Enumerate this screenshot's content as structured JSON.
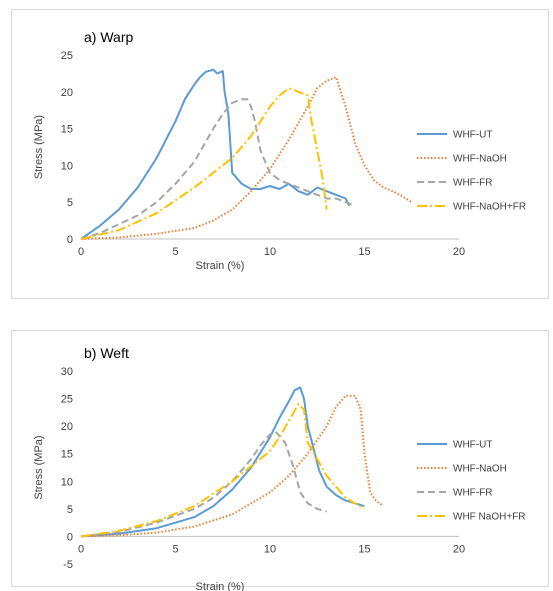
{
  "chart_data": [
    {
      "type": "line",
      "title": "a) Warp",
      "xlabel": "Strain (%)",
      "ylabel": "Stress (MPa)",
      "xlim": [
        0,
        20
      ],
      "ylim": [
        0,
        25
      ],
      "xticks": [
        0,
        5,
        10,
        15,
        20
      ],
      "yticks": [
        0,
        5,
        10,
        15,
        20,
        25
      ],
      "grid": false,
      "legend_position": "right",
      "series": [
        {
          "name": "WHF-UT",
          "color": "#5b9bd5",
          "style": "solid",
          "x": [
            0,
            1,
            2,
            3,
            4,
            5,
            5.5,
            6,
            6.3,
            6.6,
            7,
            7.2,
            7.5,
            7.6,
            7.8,
            7.9,
            8,
            8.5,
            9,
            9.5,
            10,
            10.5,
            11,
            11.5,
            12,
            12.5,
            13,
            13.5,
            14,
            14.2
          ],
          "y": [
            0,
            1.8,
            4,
            7,
            11,
            16,
            19,
            21,
            22,
            22.7,
            23,
            22.5,
            22.8,
            20,
            17,
            13,
            9,
            7.5,
            6.8,
            6.8,
            7.2,
            6.8,
            7.5,
            6.5,
            6,
            7,
            6.5,
            6,
            5.5,
            4.5
          ]
        },
        {
          "name": "WHF-NaOH",
          "color": "#ed7d31",
          "style": "dotted",
          "x": [
            0,
            2,
            4,
            6,
            7,
            8,
            9,
            10,
            11,
            12,
            12.5,
            13,
            13.5,
            14,
            14.5,
            15,
            15.5,
            16,
            16.5,
            17,
            17.5
          ],
          "y": [
            0,
            0.2,
            0.7,
            1.5,
            2.5,
            4,
            6.5,
            9.5,
            13.5,
            18,
            20.5,
            21.5,
            22,
            18,
            13,
            10,
            8,
            7,
            6.5,
            5.8,
            5
          ]
        },
        {
          "name": "WHF-FR",
          "color": "#a5a5a5",
          "style": "dashed",
          "x": [
            0,
            1,
            2,
            3,
            4,
            5,
            6,
            7,
            7.5,
            8,
            8.5,
            8.8,
            9,
            9.2,
            9.5,
            10,
            10.5,
            11,
            11.5,
            12,
            12.5,
            13,
            13.5,
            14,
            14.5
          ],
          "y": [
            0,
            0.8,
            2,
            3.2,
            5,
            7.5,
            10.5,
            15,
            17,
            18.5,
            19,
            19,
            18,
            16,
            12,
            9,
            8,
            7.5,
            7,
            6.5,
            6,
            5.5,
            5.5,
            5,
            4.5
          ]
        },
        {
          "name": "WHF-NaOH+FR",
          "color": "#ffc000",
          "style": "dashdot",
          "x": [
            0,
            2,
            4,
            6,
            8,
            9,
            10,
            10.5,
            11,
            11.5,
            12,
            12.2,
            12.5,
            12.8,
            13
          ],
          "y": [
            0,
            1.2,
            3.5,
            7,
            11,
            14,
            18,
            19.5,
            20.5,
            20,
            19.5,
            16,
            12,
            8,
            4
          ]
        }
      ]
    },
    {
      "type": "line",
      "title": "b) Weft",
      "xlabel": "Strain (%)",
      "ylabel": "Stress (MPa)",
      "xlim": [
        0,
        20
      ],
      "ylim": [
        -5,
        30
      ],
      "xticks": [
        0,
        5,
        10,
        15,
        20
      ],
      "yticks": [
        -5,
        0,
        5,
        10,
        15,
        20,
        25,
        30
      ],
      "grid": false,
      "legend_position": "right",
      "series": [
        {
          "name": "WHF-UT",
          "color": "#5b9bd5",
          "style": "solid",
          "x": [
            0,
            2,
            4,
            6,
            7,
            8,
            9,
            10,
            10.5,
            11,
            11.3,
            11.6,
            11.8,
            12,
            12.3,
            12.6,
            13,
            13.5,
            14,
            14.5,
            15
          ],
          "y": [
            0,
            0.5,
            1.5,
            3.5,
            5.5,
            8.5,
            12.5,
            18,
            21.5,
            24.5,
            26.5,
            27,
            25,
            20,
            16,
            12,
            9,
            7.5,
            6.5,
            6,
            5.5
          ]
        },
        {
          "name": "WHF-NaOH",
          "color": "#ed7d31",
          "style": "dotted",
          "x": [
            0,
            2,
            4,
            6,
            8,
            10,
            11,
            12,
            13,
            13.5,
            14,
            14.5,
            14.8,
            15,
            15.3,
            15.6,
            16
          ],
          "y": [
            0,
            0.2,
            0.7,
            1.8,
            4,
            8,
            11,
            15,
            20,
            23.5,
            25.5,
            25.5,
            23,
            15,
            8,
            6.5,
            5.5
          ]
        },
        {
          "name": "WHF-FR",
          "color": "#a5a5a5",
          "style": "dashed",
          "x": [
            0,
            2,
            4,
            6,
            7,
            8,
            8.5,
            9,
            9.5,
            10,
            10.3,
            10.8,
            11.2,
            11.6,
            12,
            12.5,
            13
          ],
          "y": [
            0,
            0.8,
            2.5,
            5,
            7,
            10,
            12,
            14,
            16.5,
            18.5,
            19,
            17,
            13,
            8,
            6,
            5,
            4.5
          ]
        },
        {
          "name": "WHF NaOH+FR",
          "color": "#ffc000",
          "style": "dashdot",
          "x": [
            0,
            2,
            4,
            6,
            8,
            10,
            10.5,
            11,
            11.5,
            11.8,
            12,
            12.5,
            13,
            14,
            15
          ],
          "y": [
            0,
            1,
            2.8,
            5.5,
            10,
            15.5,
            18,
            21,
            24,
            23,
            17,
            14,
            11,
            7,
            5
          ]
        }
      ]
    }
  ]
}
